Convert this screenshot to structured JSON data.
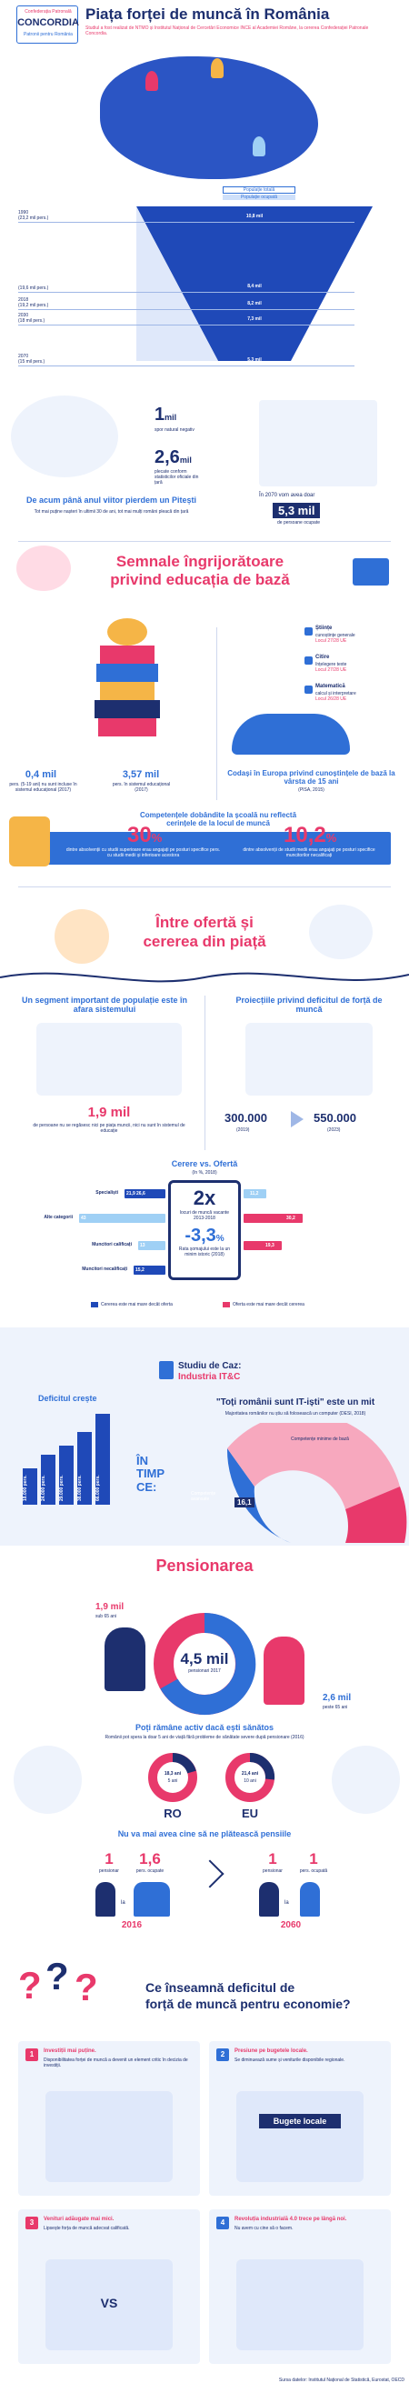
{
  "header": {
    "logo_small": "Confederația Patronală",
    "logo_name": "CONCORDIA",
    "logo_tagline": "Patronii pentru România",
    "title": "Piața forței de muncă în România",
    "subtitle": "Studiul a fost realizat de NTMO și Institutul Național de Cercetări Economice INCE al Academiei Române, la cererea Confederației Patronale Concordia."
  },
  "funnel": {
    "legend_active": "Populație totală",
    "legend_occupied": "Populație ocupată",
    "rows": [
      {
        "year": "1990",
        "total": "(23,2 mil pers.)",
        "occupied": "10,8 mil"
      },
      {
        "year": "",
        "total": "(19,6 mil pers.)",
        "occupied": "8,4 mil"
      },
      {
        "year": "2018",
        "total": "(19,2 mil pers.)",
        "occupied": "8,2 mil"
      },
      {
        "year": "2030",
        "total": "(18 mil pers.)",
        "occupied": "7,3 mil"
      },
      {
        "year": "2070",
        "total": "(15 mil pers.)",
        "occupied": "5,3 mil"
      }
    ]
  },
  "pitesti": {
    "num1": "1",
    "num1_unit": "mil",
    "num1_text": "spor natural negativ",
    "num2": "2,6",
    "num2_unit": "mil",
    "num2_text": "plecate conform statisticilor oficiale din țară",
    "headline": "De acum până anul viitor pierdem un Pitești",
    "caption": "Tot mai puține nașteri în ultimii 30 de ani, tot mai mulți români pleacă din țară",
    "right_prefix": "În 2070 vom avea doar",
    "right_year": "2070",
    "right_big": "5,3 mil",
    "right_text": "de persoane ocupate"
  },
  "education": {
    "title_line1": "Semnale îngrijorătoare",
    "title_line2": "privind educația de bază",
    "stat1_value": "0,4 mil",
    "stat1_text": "pers. (5-19 ani) nu sunt incluse în sistemul educațional (2017)",
    "stat2_value": "3,57 mil",
    "stat2_text": "pers. în sistemul educațional (2017)",
    "pisa": [
      {
        "label": "Științe",
        "desc": "cunoștințe generale",
        "rank": "Locul 27/28 UE"
      },
      {
        "label": "Citire",
        "desc": "înțelegere texte",
        "rank": "Locul 27/28 UE"
      },
      {
        "label": "Matematică",
        "desc": "calcul și interpretare",
        "rank": "Locul 26/28 UE"
      }
    ],
    "pisa_caption": "Codași în Europa privind cunoștințele de bază la vârsta de 15 ani",
    "pisa_source": "(PISA, 2015)",
    "skills_title": "Competențele dobândite la școală nu reflectă cerințele de la locul de muncă",
    "pct1": "30",
    "pct1_text": "dintre absolvenții cu studii superioare erau angajați pe posturi specifice pers. cu studii medii și inferioare acestora",
    "pct2": "10,2",
    "pct2_text": "dintre absolvenții de studii medii erau angajați pe posturi specifice muncitorilor necalificați",
    "pct_symbol": "%"
  },
  "supply": {
    "title_line1": "Între ofertă și",
    "title_line2": "cererea din piață",
    "left_title": "Un segment important de populație este în afara sistemului",
    "left_value": "1,9 mil",
    "left_text": "de persoane nu se regăsesc nici pe piața muncii, nici nu sunt în sistemul de educație",
    "right_title": "Proiecțiile privind deficitul de forță de muncă",
    "proj1_value": "300.000",
    "proj1_year": "(2019)",
    "proj2_value": "550.000",
    "proj2_year": "(2023)",
    "cvo_title": "Cerere vs. Ofertă",
    "cvo_sub": "(în %, 2018)",
    "center_big": "2x",
    "center_text": "locuri de muncă vacante 2013-2018",
    "center_big2": "-3,3",
    "center_pct": "%",
    "center_text2": "Rata șomajului este la un minim istoric (2018)",
    "rows": [
      {
        "label": "Specialiști",
        "left": "21,9",
        "left2": "26,6",
        "right": "11,2"
      },
      {
        "label": "Alte categorii",
        "left": "43",
        "right": "30,2"
      },
      {
        "label": "Muncitori calificați",
        "left": "13",
        "right": "19,3"
      },
      {
        "label": "Muncitori necalificați",
        "left": "15,2",
        "right": ""
      }
    ],
    "legend_demand": "Cererea este mai mare decât oferta",
    "legend_supply": "Oferta este mai mare decât cererea"
  },
  "case": {
    "title": "Studiu de Caz:",
    "subtitle": "Industria IT&C",
    "deficit_title": "Deficitul crește",
    "bars": [
      "18.000 pers.",
      "24.000 pers.",
      "29.000 pers.",
      "38.000 pers.",
      "66.000 pers."
    ],
    "in_time": "ÎN TIMP CE:",
    "quote": "\"Toți românii sunt IT-iști\" este un mit",
    "quote_text": "Majoritatea românilor nu știu să folosească un computer (DESI, 2018)",
    "donut_pct1": "16,1",
    "donut_label1": "Competențe avansate",
    "donut_label2": "Competențe minime de bază"
  },
  "pension": {
    "title": "Pensionarea",
    "left_value": "1,9 mil",
    "left_text": "sub 65 ani",
    "center_value": "4,5 mil",
    "center_text": "pensionari 2017",
    "right_value": "2,6 mil",
    "right_text": "peste 65 ani",
    "active_title": "Poți rămâne activ dacă ești sănătos",
    "active_sub": "Românii pot spera la doar 5 ani de viață fără probleme de sănătate severe după pensionare (2016)",
    "ro_label": "RO",
    "eu_label": "EU",
    "ro_v1": "18,3 ani",
    "ro_v2": "5 ani",
    "eu_v1": "21,4 ani",
    "eu_v2": "10 ani",
    "pay_title": "Nu va mai avea cine să ne plătească pensiile",
    "y1_left": "1",
    "y1_left_lbl": "pensionar",
    "y1_right": "1,6",
    "y1_right_lbl": "pers. ocupate",
    "y1_la": "la",
    "y1_year": "2016",
    "y2_left": "1",
    "y2_left_lbl": "pensionar",
    "y2_right": "1",
    "y2_right_lbl": "pers. ocupată",
    "y2_la": "la",
    "y2_year": "2060"
  },
  "deficit": {
    "title_line1": "Ce înseamnă deficitul de",
    "title_line2": "forță de muncă pentru economie?",
    "cards": [
      {
        "num": "1",
        "title": "Investiții mai puține.",
        "text": "Disponibilitatea forței de muncă a devenit un element critic în decizia de investiții."
      },
      {
        "num": "2",
        "title": "Presiune pe bugetele locale.",
        "text": "Se diminuează sume și veniturile disponibile regionale.",
        "badge": "Bugete locale"
      },
      {
        "num": "3",
        "title": "Venituri adăugate mai mici.",
        "text": "Lipsește forța de muncă adecvat calificată.",
        "vs": "VS"
      },
      {
        "num": "4",
        "title": "Revoluția industrială 4.0 trece pe lângă noi.",
        "text": "Nu avem cu cine să o facem."
      }
    ],
    "source": "Sursa datelor: Institutul Național de Statistică, Eurostat, OECD"
  },
  "colors": {
    "navy": "#1d2f6f",
    "blue": "#2f6fd6",
    "pink": "#e8396b",
    "light": "#eef3fc"
  }
}
